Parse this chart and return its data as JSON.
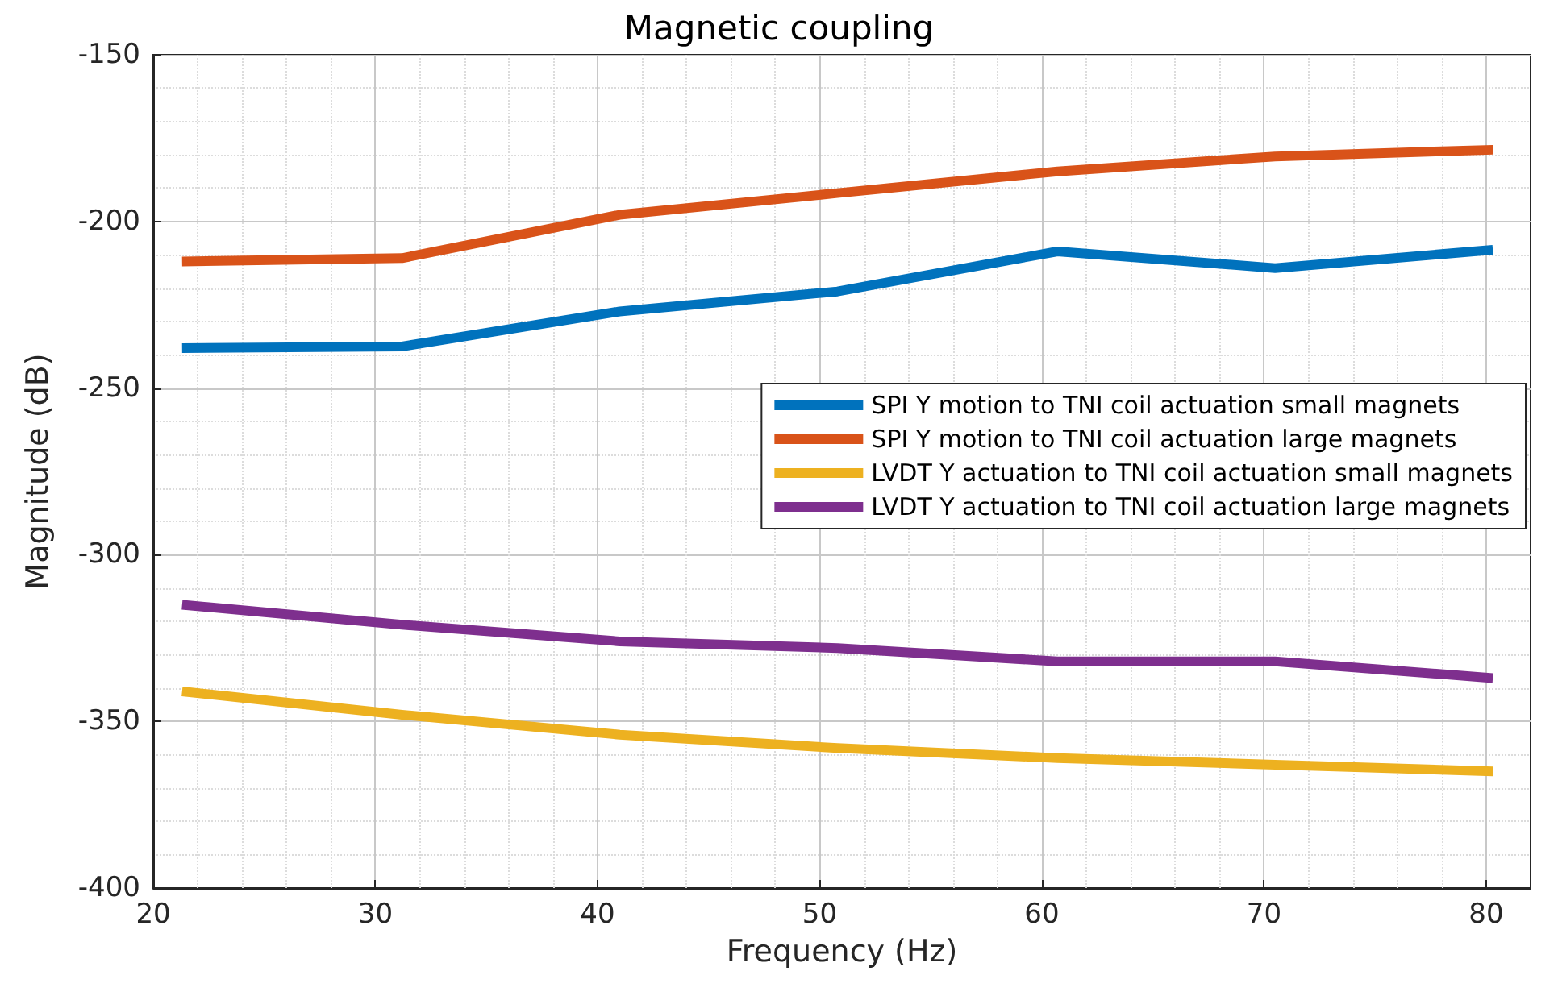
{
  "chart_data": {
    "type": "line",
    "title": "Magnetic coupling",
    "xlabel": "Frequency (Hz)",
    "ylabel": "Magnitude (dB)",
    "x": [
      21.3,
      31.2,
      41.0,
      50.8,
      60.7,
      70.5,
      80.3
    ],
    "series": [
      {
        "name": "SPI Y motion to TNI coil actuation small magnets",
        "color": "#0072bd",
        "values": [
          -238,
          -237.5,
          -227,
          -221,
          -209,
          -214,
          -208.5
        ]
      },
      {
        "name": "SPI Y motion to TNI coil actuation large magnets",
        "color": "#d95319",
        "values": [
          -212,
          -211,
          -198,
          -191.5,
          -185,
          -180.5,
          -178.5
        ]
      },
      {
        "name": "LVDT Y actuation to TNI coil actuation small magnets",
        "color": "#edb120",
        "values": [
          -341,
          -348,
          -354,
          -358,
          -361,
          -363,
          -365
        ]
      },
      {
        "name": "LVDT Y actuation to TNI coil actuation large magnets",
        "color": "#7e2f8e",
        "values": [
          -315,
          -321,
          -326,
          -328,
          -332,
          -332,
          -337
        ]
      }
    ],
    "xlim": [
      20,
      82
    ],
    "xticks": [
      20,
      30,
      40,
      50,
      60,
      70,
      80
    ],
    "ylim": [
      -400,
      -150
    ],
    "yticks": [
      -400,
      -350,
      -300,
      -250,
      -200,
      -150
    ],
    "grid": true,
    "legend": "right",
    "marker": "none",
    "line_style": "solid"
  }
}
